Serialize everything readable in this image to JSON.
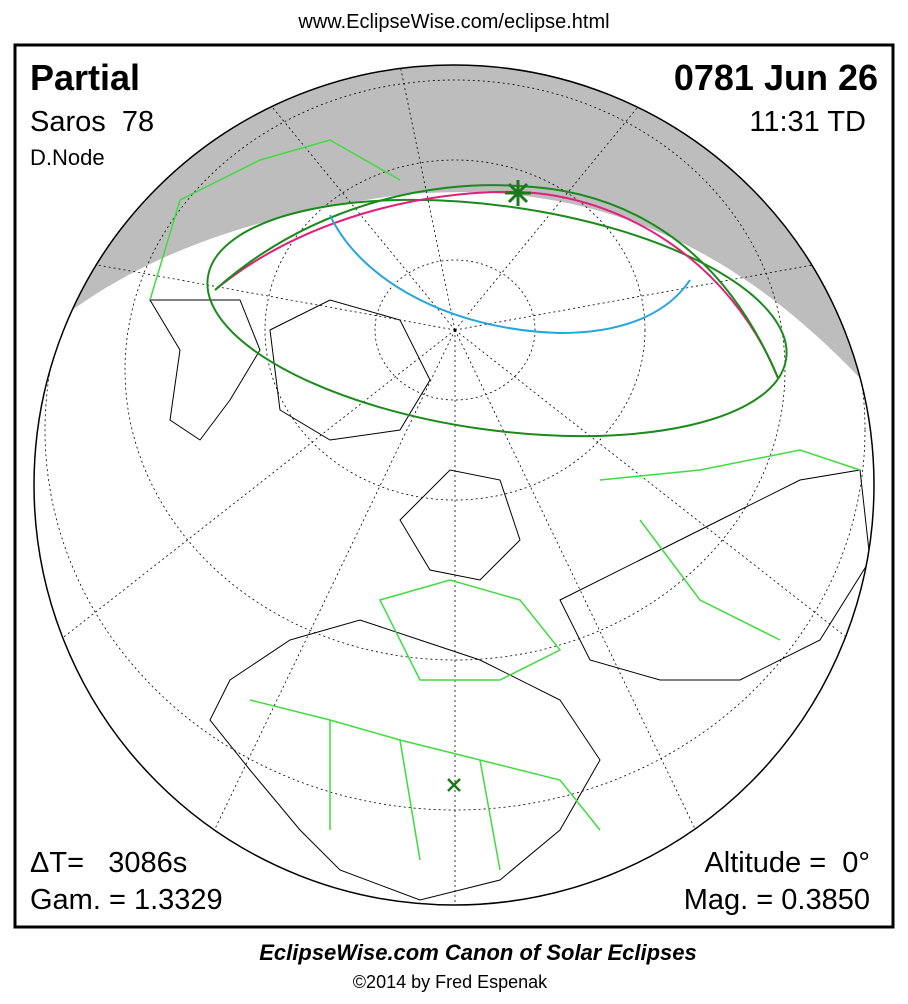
{
  "url": "www.EclipseWise.com/eclipse.html",
  "eclipse": {
    "type": "Partial",
    "date": "0781 Jun 26",
    "saros": "Saros  78",
    "time": "11:31 TD",
    "node": "D.Node",
    "delta_t": "ΔT=   3086s",
    "gamma": "Gam. = 1.3329",
    "altitude": "Altitude =  0°",
    "magnitude": "Mag. = 0.3850"
  },
  "footer": {
    "title": "EclipseWise.com Canon of Solar Eclipses",
    "credit": "©2014 by Fred Espenak"
  }
}
